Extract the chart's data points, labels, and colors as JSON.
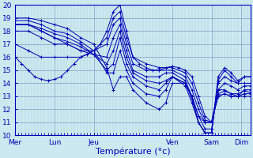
{
  "xlabel": "Température (°c)",
  "xlim": [
    0,
    144
  ],
  "ylim": [
    10,
    20
  ],
  "yticks": [
    10,
    11,
    12,
    13,
    14,
    15,
    16,
    17,
    18,
    19,
    20
  ],
  "day_positions": [
    0,
    24,
    48,
    96,
    120,
    138
  ],
  "day_labels": [
    "Mer",
    "Lun",
    "Jeu",
    "Ven",
    "Sam",
    "Dim"
  ],
  "bg_color": "#cce8f0",
  "line_color": "#0000bb",
  "marker": "+",
  "lines": [
    [
      0,
      16.0,
      4,
      15.5,
      8,
      15.0,
      12,
      14.5,
      16,
      14.3,
      20,
      14.2,
      24,
      14.3,
      28,
      14.5,
      32,
      15.0,
      36,
      15.5,
      40,
      16.0,
      44,
      16.2,
      48,
      16.5,
      52,
      17.0,
      56,
      18.0,
      60,
      19.5,
      64,
      20.0,
      68,
      18.0,
      72,
      16.0,
      76,
      15.5,
      80,
      15.2,
      84,
      15.0,
      88,
      15.0,
      92,
      15.2,
      96,
      15.3,
      100,
      15.2,
      104,
      15.0,
      108,
      14.5,
      112,
      13.0,
      116,
      11.5,
      120,
      11.0,
      124,
      13.0,
      128,
      13.2,
      132,
      13.0,
      136,
      13.0,
      140,
      13.0,
      144,
      13.0
    ],
    [
      0,
      17.0,
      8,
      16.5,
      16,
      16.0,
      24,
      16.0,
      32,
      16.0,
      40,
      16.0,
      48,
      16.5,
      56,
      17.5,
      60,
      19.0,
      64,
      19.5,
      68,
      17.5,
      72,
      16.0,
      80,
      15.5,
      88,
      15.2,
      96,
      15.2,
      104,
      14.8,
      108,
      14.0,
      112,
      12.5,
      116,
      11.2,
      120,
      11.0,
      124,
      13.0,
      128,
      13.2,
      132,
      13.0,
      136,
      13.0,
      140,
      13.2,
      144,
      13.2
    ],
    [
      0,
      18.0,
      8,
      18.0,
      16,
      17.5,
      24,
      17.0,
      32,
      17.0,
      40,
      16.5,
      48,
      16.5,
      56,
      17.0,
      60,
      18.5,
      64,
      19.0,
      68,
      17.0,
      72,
      15.5,
      80,
      15.0,
      88,
      15.0,
      96,
      15.0,
      104,
      14.5,
      108,
      13.5,
      112,
      12.0,
      116,
      11.0,
      120,
      11.0,
      124,
      13.2,
      128,
      13.4,
      132,
      13.2,
      136,
      13.2,
      140,
      13.4,
      144,
      13.3
    ],
    [
      0,
      18.5,
      8,
      18.5,
      16,
      18.0,
      24,
      17.5,
      32,
      17.0,
      40,
      16.5,
      48,
      16.2,
      56,
      16.0,
      60,
      17.5,
      64,
      18.5,
      68,
      16.5,
      72,
      15.0,
      80,
      14.5,
      88,
      14.5,
      92,
      14.8,
      96,
      14.8,
      104,
      14.2,
      108,
      13.0,
      112,
      11.5,
      116,
      11.0,
      120,
      11.0,
      124,
      13.5,
      128,
      13.5,
      132,
      13.2,
      136,
      13.0,
      140,
      13.5,
      144,
      13.5
    ],
    [
      0,
      18.5,
      8,
      18.5,
      16,
      18.0,
      24,
      17.5,
      32,
      17.2,
      40,
      16.8,
      48,
      16.2,
      56,
      15.5,
      60,
      16.5,
      64,
      18.0,
      68,
      16.0,
      72,
      14.8,
      80,
      14.2,
      88,
      14.0,
      92,
      14.2,
      96,
      14.5,
      104,
      14.0,
      108,
      13.0,
      112,
      11.5,
      116,
      10.5,
      120,
      10.5,
      124,
      13.5,
      128,
      14.0,
      132,
      13.8,
      136,
      13.5,
      140,
      13.8,
      144,
      13.8
    ],
    [
      0,
      18.5,
      8,
      18.5,
      16,
      18.2,
      24,
      17.8,
      32,
      17.5,
      40,
      17.0,
      48,
      16.2,
      56,
      15.0,
      60,
      15.5,
      64,
      17.5,
      68,
      15.5,
      72,
      14.5,
      80,
      13.8,
      88,
      13.5,
      92,
      14.0,
      96,
      14.5,
      104,
      13.8,
      108,
      12.5,
      112,
      11.0,
      116,
      10.2,
      120,
      10.2,
      124,
      14.0,
      128,
      14.5,
      132,
      14.2,
      136,
      14.0,
      140,
      14.0,
      144,
      14.0
    ],
    [
      0,
      18.8,
      8,
      18.8,
      16,
      18.5,
      24,
      18.0,
      32,
      17.8,
      40,
      17.2,
      48,
      16.5,
      56,
      14.8,
      60,
      14.8,
      64,
      16.5,
      68,
      15.0,
      72,
      14.0,
      80,
      13.2,
      88,
      13.0,
      92,
      13.5,
      96,
      14.5,
      104,
      14.0,
      108,
      12.8,
      112,
      11.0,
      116,
      10.2,
      120,
      10.2,
      124,
      14.2,
      128,
      15.0,
      132,
      14.5,
      136,
      14.0,
      140,
      14.5,
      144,
      14.5
    ],
    [
      0,
      19.0,
      8,
      19.0,
      16,
      18.8,
      24,
      18.5,
      32,
      18.2,
      40,
      17.5,
      48,
      17.0,
      56,
      15.2,
      60,
      13.5,
      64,
      14.5,
      68,
      14.5,
      72,
      13.5,
      80,
      12.5,
      88,
      12.0,
      92,
      12.5,
      96,
      14.0,
      104,
      14.0,
      108,
      13.0,
      112,
      11.0,
      116,
      10.2,
      120,
      10.2,
      124,
      14.5,
      128,
      15.2,
      132,
      14.8,
      136,
      14.2,
      140,
      14.5,
      144,
      14.5
    ]
  ],
  "grid_major_color": "#88aacc",
  "grid_minor_color": "#aaccdd",
  "tick_label_color": "#0000bb",
  "figsize": [
    3.2,
    2.0
  ],
  "dpi": 100
}
